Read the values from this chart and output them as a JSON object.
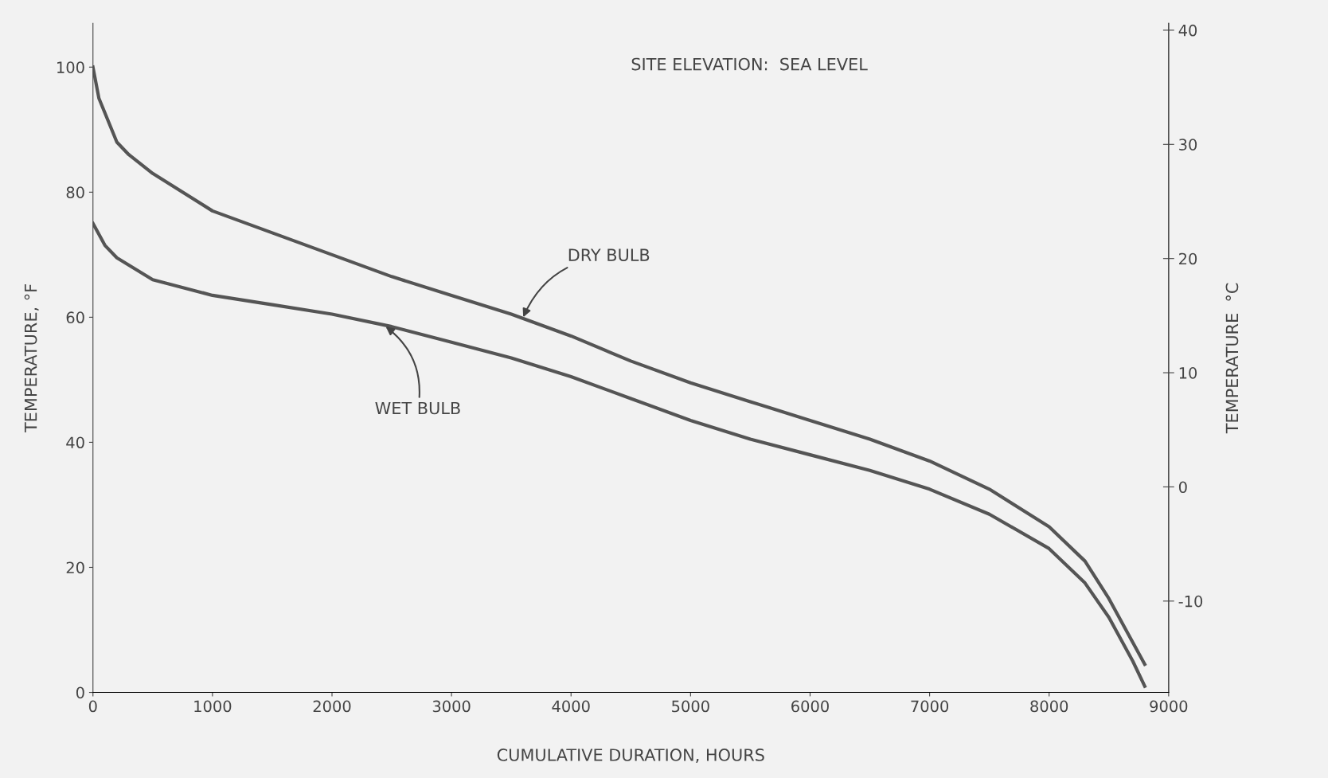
{
  "chart_data": {
    "type": "line",
    "xlabel": "CUMULATIVE DURATION, HOURS",
    "ylabel": "TEMPERATURE, °F",
    "y2label": "TEMPERATURE  °C",
    "xlim": [
      0,
      9000
    ],
    "xticks": [
      0,
      1000,
      2000,
      3000,
      4000,
      5000,
      6000,
      7000,
      8000,
      9000
    ],
    "ylim": [
      0,
      107
    ],
    "yticks": [
      0,
      20,
      40,
      60,
      80,
      100
    ],
    "y2lim": [
      -18,
      40.6
    ],
    "y2ticks": [
      -10,
      0,
      10,
      20,
      30,
      40
    ],
    "grid": false,
    "legend": false,
    "marker": "none",
    "line_style": "solid",
    "series": [
      {
        "color": "#555555",
        "x": [
          0,
          50,
          200,
          300,
          500,
          1000,
          1500,
          2000,
          2500,
          3000,
          3500,
          4000,
          4500,
          5000,
          5500,
          6000,
          6500,
          7000,
          7500,
          8000,
          8300,
          8500,
          8700,
          8800
        ],
        "values": [
          100,
          95,
          88,
          86,
          83,
          77,
          73.5,
          70,
          66.5,
          63.5,
          60.5,
          57,
          53,
          49.5,
          46.5,
          43.5,
          40.5,
          37,
          32.5,
          26.5,
          21,
          15,
          8,
          4.5
        ]
      },
      {
        "color": "#555555",
        "x": [
          0,
          100,
          200,
          500,
          1000,
          1500,
          2000,
          2500,
          3000,
          3500,
          4000,
          4500,
          5000,
          5500,
          6000,
          6500,
          7000,
          7500,
          8000,
          8300,
          8500,
          8700,
          8800
        ],
        "values": [
          75,
          71.5,
          69.5,
          66,
          63.5,
          62,
          60.5,
          58.5,
          56,
          53.5,
          50.5,
          47,
          43.5,
          40.5,
          38,
          35.5,
          32.5,
          28.5,
          23,
          17.5,
          12,
          5,
          1
        ]
      }
    ],
    "annotations": [
      "SITE ELEVATION:  SEA LEVEL",
      {
        "text": "DRY BULB",
        "x": 3600,
        "y": 60
      },
      {
        "text": "WET BULB",
        "x": 2450,
        "y": 58.5
      }
    ]
  }
}
